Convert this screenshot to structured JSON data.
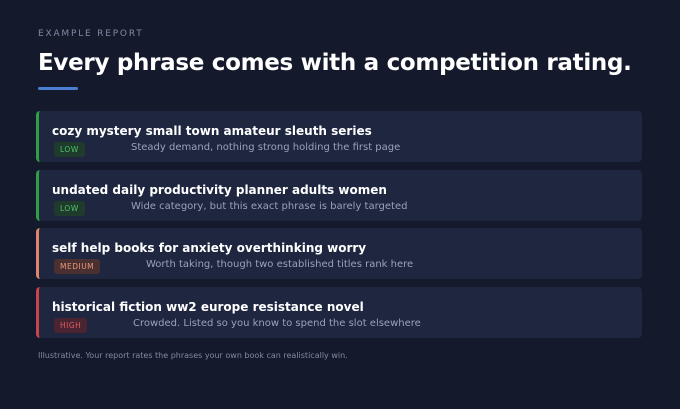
{
  "header": {
    "eyebrow": "EXAMPLE REPORT",
    "title": "Every phrase comes with a competition rating."
  },
  "items": [
    {
      "phrase": "cozy mystery small town amateur sleuth series",
      "rating": "LOW",
      "note": "Steady demand, nothing strong holding the first page"
    },
    {
      "phrase": "undated daily productivity planner adults women",
      "rating": "LOW",
      "note": "Wide category, but this exact phrase is barely targeted"
    },
    {
      "phrase": "self help books for anxiety overthinking worry",
      "rating": "MEDIUM",
      "note": "Worth taking, though two established titles rank here"
    },
    {
      "phrase": "historical fiction ww2 europe resistance novel",
      "rating": "HIGH",
      "note": "Crowded. Listed so you know to spend the slot elsewhere"
    }
  ],
  "footer": "Illustrative. Your report rates the phrases your own book can realistically win."
}
